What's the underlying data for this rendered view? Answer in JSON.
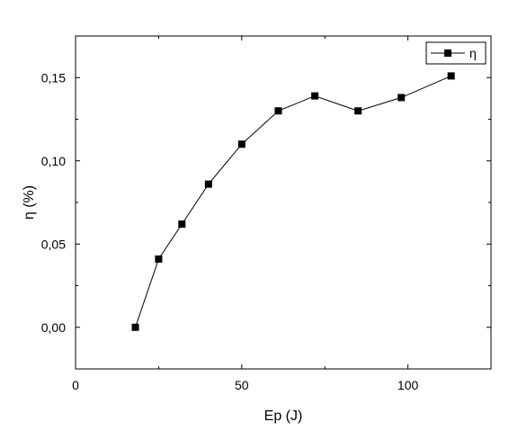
{
  "chart_data": {
    "type": "line",
    "title": "",
    "xlabel": "Ep (J)",
    "ylabel": "η (%)",
    "xlim": [
      0,
      125
    ],
    "ylim": [
      -0.025,
      0.175
    ],
    "xticks": [
      0,
      50,
      100
    ],
    "xtick_labels": [
      "0",
      "50",
      "100"
    ],
    "yticks": [
      0.0,
      0.05,
      0.1,
      0.15
    ],
    "ytick_labels": [
      "0,00",
      "0,05",
      "0,10",
      "0,15"
    ],
    "grid": false,
    "legend_position": "top-right",
    "marker": "square",
    "series": [
      {
        "name": "η",
        "color": "#000000",
        "x": [
          18,
          25,
          32,
          40,
          50,
          61,
          72,
          85,
          98,
          113
        ],
        "y": [
          0.0,
          0.041,
          0.062,
          0.086,
          0.11,
          0.13,
          0.139,
          0.13,
          0.138,
          0.151
        ]
      }
    ]
  }
}
